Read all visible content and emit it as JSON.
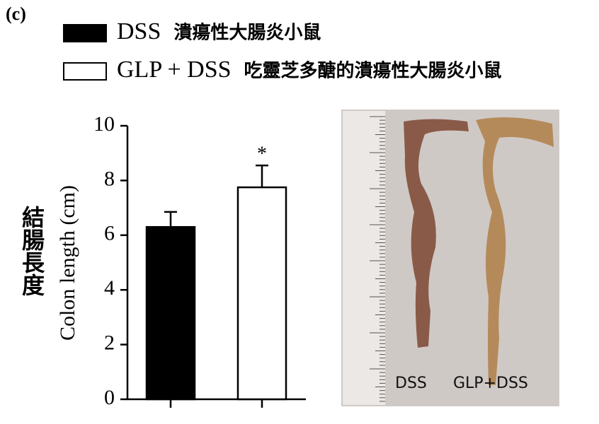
{
  "chart_data": {
    "type": "bar",
    "panel_label": "(c)",
    "categories": [
      "DSS",
      "GLP + DSS"
    ],
    "category_descriptions": [
      "潰瘍性大腸炎小鼠",
      "吃靈芝多醣的潰瘍性大腸炎小鼠"
    ],
    "values": [
      6.3,
      7.75
    ],
    "errors": [
      0.55,
      0.8
    ],
    "colors": [
      "#000000",
      "#ffffff"
    ],
    "significance": [
      null,
      "*"
    ],
    "y_label": "Colon length (cm)",
    "y_label_zh": "結腸長度",
    "ylim": [
      0,
      10
    ],
    "yticks": [
      0,
      2,
      4,
      6,
      8,
      10
    ],
    "photo_labels": [
      "DSS",
      "GLP+DSS"
    ]
  }
}
